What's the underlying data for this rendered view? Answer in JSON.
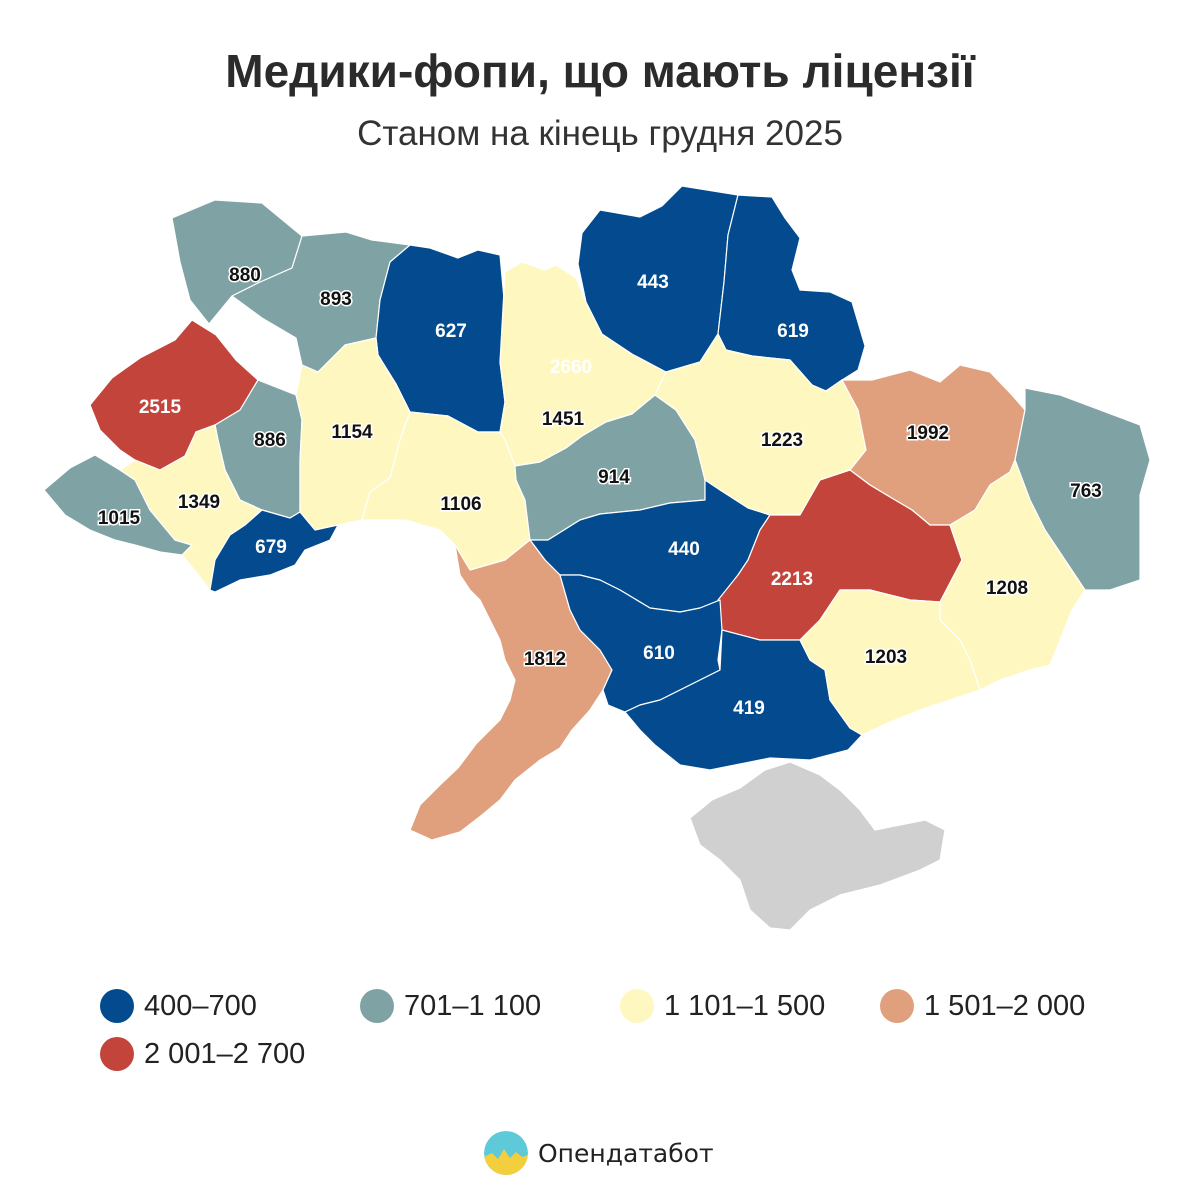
{
  "title": "Медики-фопи, що мають ліцензії",
  "subtitle": "Станом на кінець грудня 2025",
  "colors": {
    "400-700": "#034b8e",
    "701-1100": "#7fa3a4",
    "1101-1500": "#fef8c0",
    "1501-2000": "#e0a07e",
    "2001-2700": "#c2443a",
    "no_data": "#d0d0d0"
  },
  "legend": [
    {
      "label": "400–700",
      "color": "#034b8e"
    },
    {
      "label": "701–1 100",
      "color": "#7fa3a4"
    },
    {
      "label": "1 101–1 500",
      "color": "#fef8c0"
    },
    {
      "label": "1 501–2 000",
      "color": "#e0a07e"
    },
    {
      "label": "2 001–2 700",
      "color": "#c2443a"
    }
  ],
  "regions": [
    {
      "key": "volyn",
      "value": "880",
      "bin": "701-1100"
    },
    {
      "key": "rivne",
      "value": "893",
      "bin": "701-1100"
    },
    {
      "key": "zhytomyr",
      "value": "627",
      "bin": "400-700"
    },
    {
      "key": "kyiv_city",
      "value": "2660",
      "bin": "2001-2700"
    },
    {
      "key": "kyiv_oblast",
      "value": "1451",
      "bin": "1101-1500"
    },
    {
      "key": "chernihiv",
      "value": "443",
      "bin": "400-700"
    },
    {
      "key": "sumy",
      "value": "619",
      "bin": "400-700"
    },
    {
      "key": "lviv",
      "value": "2515",
      "bin": "2001-2700"
    },
    {
      "key": "ternopil",
      "value": "886",
      "bin": "701-1100"
    },
    {
      "key": "khmelnytskyi",
      "value": "1154",
      "bin": "1101-1500"
    },
    {
      "key": "vinnytsia",
      "value": "1106",
      "bin": "1101-1500"
    },
    {
      "key": "cherkasy",
      "value": "914",
      "bin": "701-1100"
    },
    {
      "key": "poltava",
      "value": "1223",
      "bin": "1101-1500"
    },
    {
      "key": "kharkiv",
      "value": "1992",
      "bin": "1501-2000"
    },
    {
      "key": "luhansk",
      "value": "763",
      "bin": "701-1100"
    },
    {
      "key": "zakarpattia",
      "value": "1015",
      "bin": "701-1100"
    },
    {
      "key": "ivano_frankivsk",
      "value": "1349",
      "bin": "1101-1500"
    },
    {
      "key": "chernivtsi",
      "value": "679",
      "bin": "400-700"
    },
    {
      "key": "kirovohrad",
      "value": "440",
      "bin": "400-700"
    },
    {
      "key": "dnipropetrovsk",
      "value": "2213",
      "bin": "2001-2700"
    },
    {
      "key": "donetsk",
      "value": "1208",
      "bin": "1101-1500"
    },
    {
      "key": "odesa",
      "value": "1812",
      "bin": "1501-2000"
    },
    {
      "key": "mykolaiv",
      "value": "610",
      "bin": "400-700"
    },
    {
      "key": "kherson",
      "value": "419",
      "bin": "400-700"
    },
    {
      "key": "zaporizhzhia",
      "value": "1203",
      "bin": "1101-1500"
    },
    {
      "key": "crimea",
      "value": "",
      "bin": "no_data"
    }
  ],
  "brand": {
    "name": "Опендатабот",
    "icon": "opendatabot-logo-icon"
  }
}
